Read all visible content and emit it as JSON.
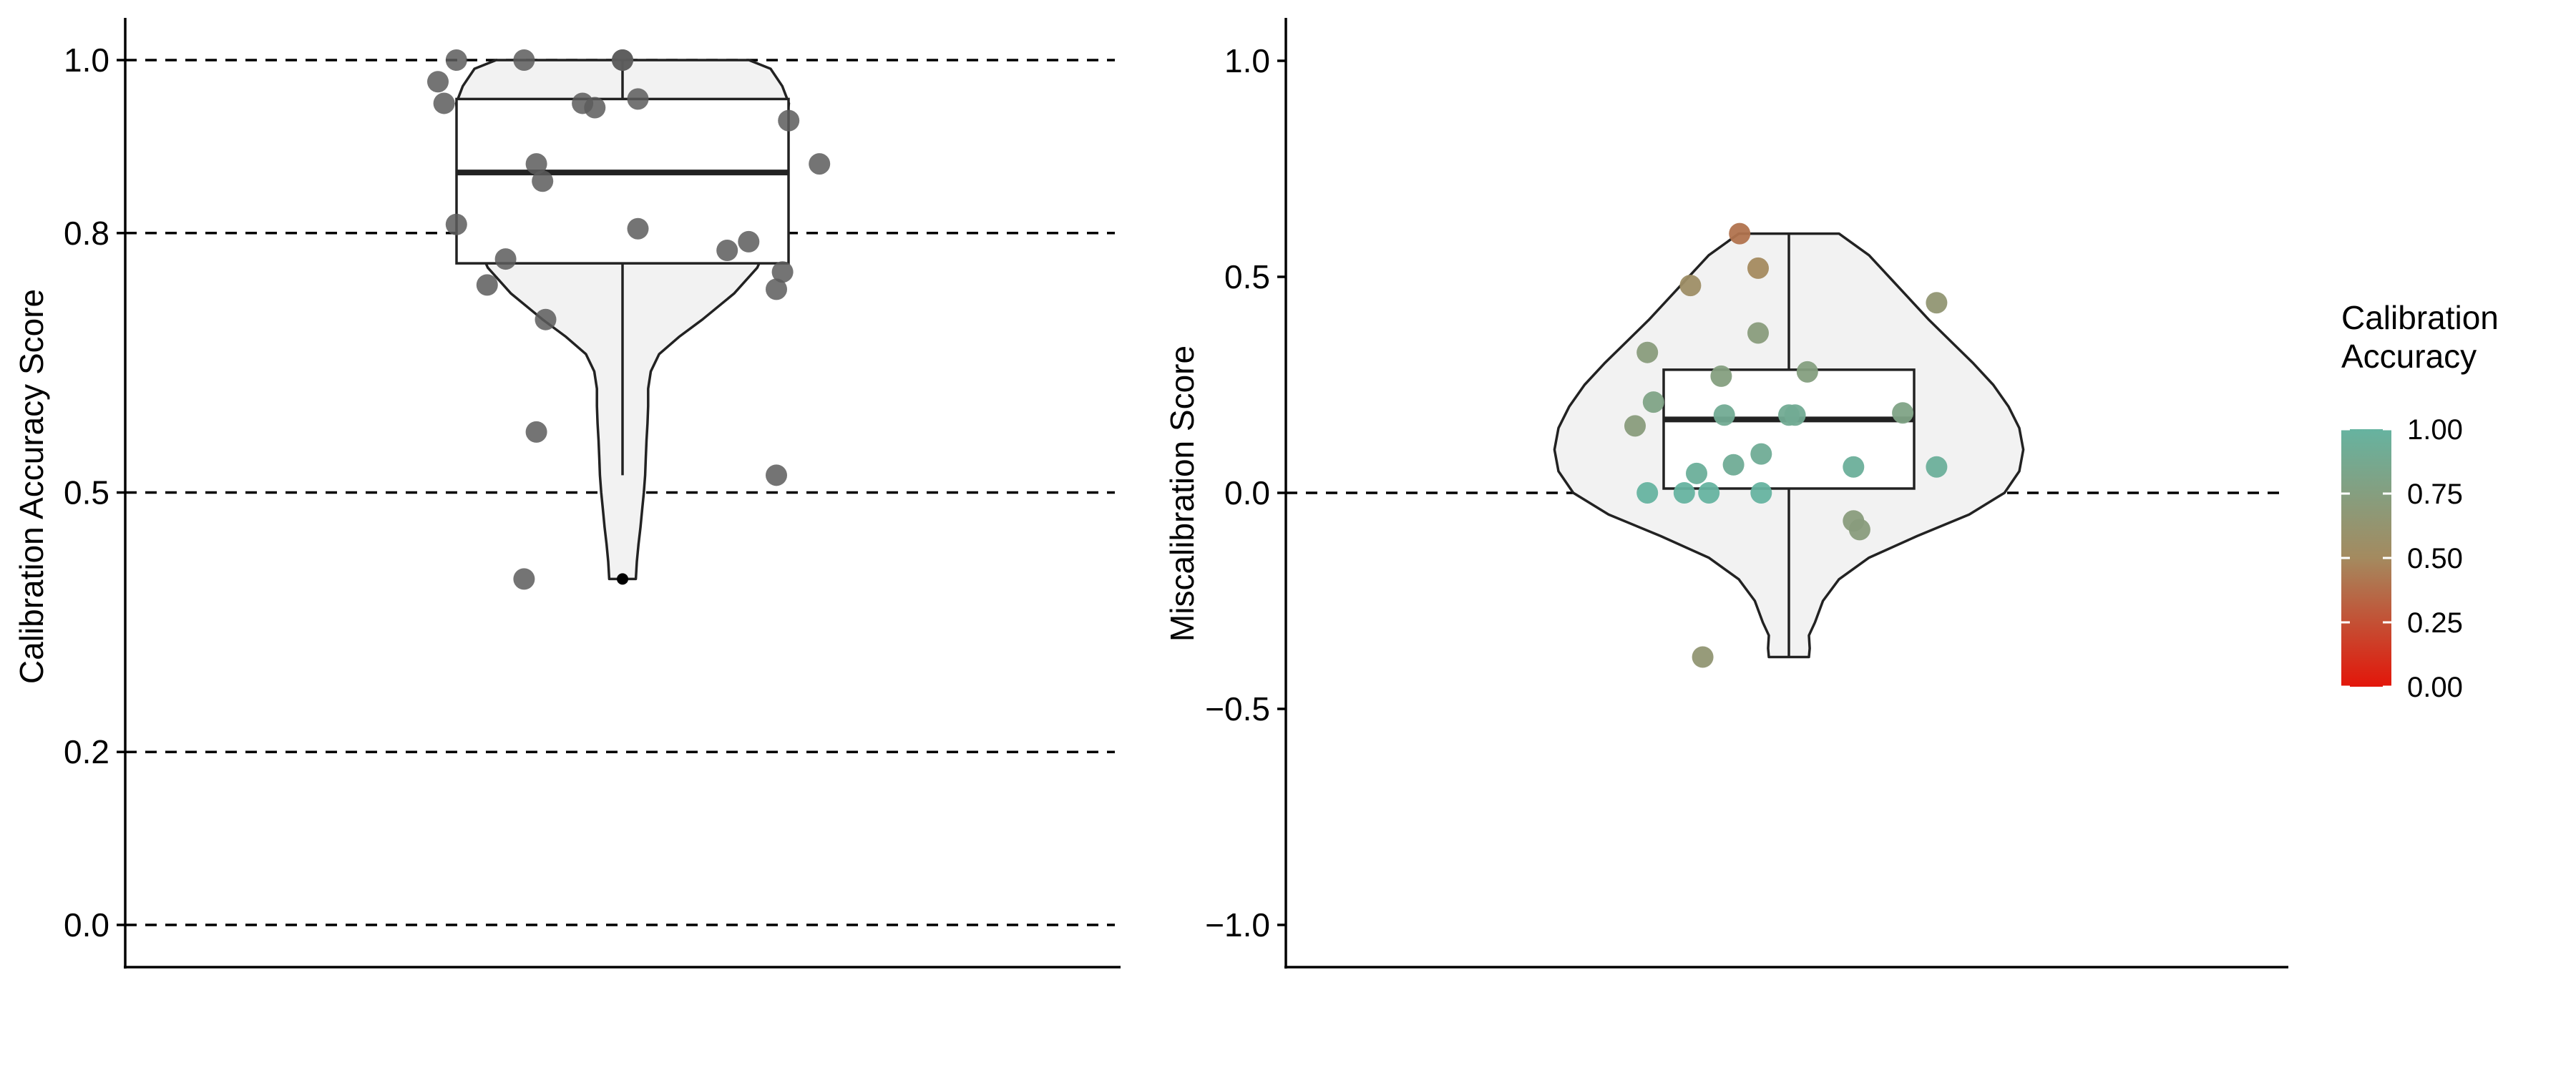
{
  "chart_data": [
    {
      "type": "violin",
      "title": "",
      "xlabel": "",
      "ylabel": "Calibration Accuracy Score",
      "ylim": [
        -0.05,
        1.05
      ],
      "yticks": [
        0.0,
        0.2,
        0.5,
        0.8,
        1.0
      ],
      "ytick_labels": [
        "0.0",
        "0.2",
        "0.5",
        "0.8",
        "1.0"
      ],
      "reference_lines": [
        0.0,
        0.2,
        0.5,
        0.8,
        1.0
      ],
      "grid": false,
      "point_color": "#5c5c5c",
      "violin_fill": "#f2f2f2",
      "violin_outline": [
        [
          1.0,
          0.38
        ],
        [
          0.99,
          0.445
        ],
        [
          0.97,
          0.48
        ],
        [
          0.95,
          0.5
        ],
        [
          0.92,
          0.49
        ],
        [
          0.88,
          0.46
        ],
        [
          0.85,
          0.445
        ],
        [
          0.82,
          0.44
        ],
        [
          0.79,
          0.44
        ],
        [
          0.76,
          0.405
        ],
        [
          0.73,
          0.335
        ],
        [
          0.7,
          0.24
        ],
        [
          0.68,
          0.17
        ],
        [
          0.66,
          0.11
        ],
        [
          0.64,
          0.085
        ],
        [
          0.62,
          0.077
        ],
        [
          0.6,
          0.077
        ],
        [
          0.58,
          0.075
        ],
        [
          0.56,
          0.072
        ],
        [
          0.54,
          0.07
        ],
        [
          0.52,
          0.068
        ],
        [
          0.5,
          0.064
        ],
        [
          0.48,
          0.059
        ],
        [
          0.46,
          0.054
        ],
        [
          0.44,
          0.048
        ],
        [
          0.42,
          0.043
        ],
        [
          0.4,
          0.04
        ]
      ],
      "box": {
        "q1": 0.765,
        "median": 0.87,
        "q3": 0.955,
        "whisker_low": 0.52,
        "whisker_high": 1.0
      },
      "outliers": [
        0.4
      ],
      "points": [
        {
          "dx": -0.27,
          "y": 1.0
        },
        {
          "dx": -0.16,
          "y": 1.0
        },
        {
          "dx": 0.0,
          "y": 1.0
        },
        {
          "dx": 0.0,
          "y": 1.0
        },
        {
          "dx": -0.3,
          "y": 0.975
        },
        {
          "dx": -0.29,
          "y": 0.95
        },
        {
          "dx": -0.065,
          "y": 0.95
        },
        {
          "dx": -0.045,
          "y": 0.945
        },
        {
          "dx": 0.025,
          "y": 0.955
        },
        {
          "dx": 0.27,
          "y": 0.93
        },
        {
          "dx": 0.32,
          "y": 0.88
        },
        {
          "dx": -0.14,
          "y": 0.88
        },
        {
          "dx": -0.13,
          "y": 0.86
        },
        {
          "dx": -0.27,
          "y": 0.81
        },
        {
          "dx": 0.025,
          "y": 0.805
        },
        {
          "dx": 0.205,
          "y": 0.79
        },
        {
          "dx": 0.17,
          "y": 0.78
        },
        {
          "dx": -0.19,
          "y": 0.77
        },
        {
          "dx": 0.26,
          "y": 0.755
        },
        {
          "dx": -0.22,
          "y": 0.74
        },
        {
          "dx": 0.25,
          "y": 0.735
        },
        {
          "dx": -0.125,
          "y": 0.7
        },
        {
          "dx": -0.14,
          "y": 0.57
        },
        {
          "dx": 0.25,
          "y": 0.52
        },
        {
          "dx": -0.16,
          "y": 0.4
        }
      ]
    },
    {
      "type": "violin",
      "title": "",
      "xlabel": "",
      "ylabel": "Miscalibration Score",
      "ylim": [
        -1.1,
        1.1
      ],
      "yticks": [
        -1.0,
        -0.5,
        0.0,
        0.5,
        1.0
      ],
      "ytick_labels": [
        "−1.0",
        "−0.5",
        "0.0",
        "0.5",
        "1.0"
      ],
      "reference_lines": [
        0.0
      ],
      "grid": false,
      "violin_fill": "#f2f2f2",
      "violin_outline": [
        [
          0.6,
          0.125
        ],
        [
          0.55,
          0.2
        ],
        [
          0.5,
          0.25
        ],
        [
          0.45,
          0.3
        ],
        [
          0.4,
          0.35
        ],
        [
          0.35,
          0.405
        ],
        [
          0.3,
          0.46
        ],
        [
          0.25,
          0.51
        ],
        [
          0.2,
          0.548
        ],
        [
          0.15,
          0.575
        ],
        [
          0.1,
          0.585
        ],
        [
          0.05,
          0.575
        ],
        [
          0.0,
          0.538
        ],
        [
          -0.05,
          0.45
        ],
        [
          -0.1,
          0.32
        ],
        [
          -0.15,
          0.2
        ],
        [
          -0.2,
          0.125
        ],
        [
          -0.25,
          0.085
        ],
        [
          -0.3,
          0.065
        ],
        [
          -0.33,
          0.05
        ],
        [
          -0.36,
          0.052
        ],
        [
          -0.38,
          0.05
        ]
      ],
      "box": {
        "q1": 0.01,
        "median": 0.17,
        "q3": 0.285,
        "whisker_low": -0.38,
        "whisker_high": 0.6
      },
      "colorbar": {
        "title": [
          "Calibration",
          "Accuracy"
        ],
        "ticks": [
          1.0,
          0.75,
          0.5,
          0.25,
          0.0
        ],
        "tick_labels": [
          "1.00",
          "0.75",
          "0.50",
          "0.25",
          "0.00"
        ],
        "color_low": "#e3160a",
        "color_mid": "#a48a5f",
        "color_high": "#66b3a0"
      },
      "points": [
        {
          "dx": -0.08,
          "y": 0.6,
          "acc": 0.4
        },
        {
          "dx": -0.05,
          "y": 0.52,
          "acc": 0.5
        },
        {
          "dx": -0.16,
          "y": 0.48,
          "acc": 0.55
        },
        {
          "dx": 0.24,
          "y": 0.44,
          "acc": 0.65
        },
        {
          "dx": -0.05,
          "y": 0.37,
          "acc": 0.72
        },
        {
          "dx": -0.23,
          "y": 0.325,
          "acc": 0.72
        },
        {
          "dx": -0.11,
          "y": 0.27,
          "acc": 0.75
        },
        {
          "dx": 0.03,
          "y": 0.28,
          "acc": 0.75
        },
        {
          "dx": -0.22,
          "y": 0.21,
          "acc": 0.8
        },
        {
          "dx": -0.25,
          "y": 0.155,
          "acc": 0.72
        },
        {
          "dx": -0.105,
          "y": 0.18,
          "acc": 0.9
        },
        {
          "dx": 0.0,
          "y": 0.18,
          "acc": 0.9
        },
        {
          "dx": 0.01,
          "y": 0.18,
          "acc": 0.9
        },
        {
          "dx": 0.185,
          "y": 0.185,
          "acc": 0.8
        },
        {
          "dx": -0.15,
          "y": 0.045,
          "acc": 0.95
        },
        {
          "dx": -0.09,
          "y": 0.065,
          "acc": 0.92
        },
        {
          "dx": -0.045,
          "y": 0.09,
          "acc": 0.92
        },
        {
          "dx": 0.105,
          "y": 0.06,
          "acc": 0.95
        },
        {
          "dx": 0.24,
          "y": 0.06,
          "acc": 0.95
        },
        {
          "dx": -0.23,
          "y": 0.0,
          "acc": 1.0
        },
        {
          "dx": -0.17,
          "y": 0.0,
          "acc": 1.0
        },
        {
          "dx": -0.13,
          "y": 0.0,
          "acc": 1.0
        },
        {
          "dx": -0.045,
          "y": 0.0,
          "acc": 1.0
        },
        {
          "dx": 0.105,
          "y": -0.065,
          "acc": 0.72
        },
        {
          "dx": 0.115,
          "y": -0.085,
          "acc": 0.72
        },
        {
          "dx": -0.14,
          "y": -0.38,
          "acc": 0.65
        }
      ]
    }
  ]
}
